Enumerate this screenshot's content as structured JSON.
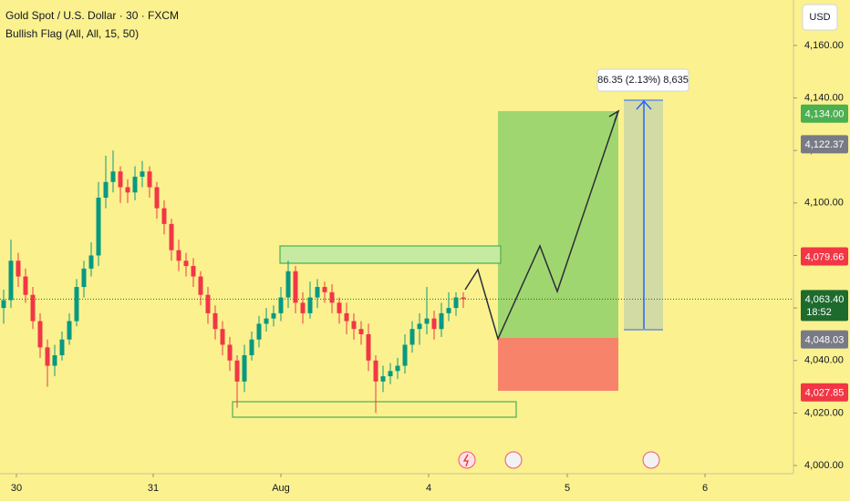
{
  "chart_data": {
    "type": "candlestick",
    "title": "Gold Spot / U.S. Dollar · 30 · FXCM",
    "subtitle": "Bullish Flag (All, All, 15, 50)",
    "currency": "USD",
    "measure_label": "86.35 (2.13%) 8,635",
    "up_color": "#089981",
    "down_color": "#f23645",
    "open": [
      4060,
      4063,
      4078,
      4072,
      4065,
      4055,
      4045,
      4038,
      4042,
      4048,
      4055,
      4068,
      4075,
      4080,
      4102,
      4108,
      4112,
      4106,
      4104,
      4110,
      4112,
      4106,
      4098,
      4092,
      4082,
      4078,
      4076,
      4072,
      4065,
      4058,
      4052,
      4046,
      4040,
      4032,
      4042,
      4048,
      4054,
      4056,
      4058,
      4064,
      4074,
      4062,
      4058,
      4064,
      4068,
      4066,
      4062,
      4058,
      4055,
      4052,
      4050,
      4040,
      4032,
      4034,
      4036,
      4038,
      4046,
      4052,
      4054,
      4056,
      4052,
      4058,
      4060,
      4064
    ],
    "high": [
      4067,
      4086,
      4081,
      4075,
      4068,
      4058,
      4048,
      4046,
      4051,
      4058,
      4071,
      4078,
      4085,
      4108,
      4118,
      4120,
      4114,
      4109,
      4114,
      4116,
      4114,
      4108,
      4101,
      4094,
      4086,
      4081,
      4079,
      4074,
      4068,
      4061,
      4055,
      4049,
      4042,
      4046,
      4051,
      4057,
      4060,
      4061,
      4068,
      4078,
      4076,
      4066,
      4070,
      4071,
      4070,
      4069,
      4064,
      4062,
      4058,
      4055,
      4054,
      4042,
      4038,
      4039,
      4041,
      4050,
      4055,
      4058,
      4068,
      4059,
      4062,
      4066,
      4066,
      4066
    ],
    "low": [
      4054,
      4060,
      4068,
      4062,
      4052,
      4041,
      4030,
      4034,
      4040,
      4046,
      4053,
      4064,
      4072,
      4076,
      4098,
      4104,
      4100,
      4100,
      4101,
      4106,
      4102,
      4094,
      4088,
      4078,
      4074,
      4072,
      4068,
      4061,
      4054,
      4048,
      4042,
      4036,
      4022,
      4028,
      4040,
      4045,
      4051,
      4053,
      4055,
      4060,
      4058,
      4054,
      4056,
      4060,
      4062,
      4058,
      4054,
      4050,
      4048,
      4046,
      4036,
      4020,
      4028,
      4031,
      4033,
      4035,
      4043,
      4046,
      4050,
      4048,
      4049,
      4055,
      4057,
      4060
    ],
    "close": [
      4063,
      4078,
      4072,
      4065,
      4055,
      4045,
      4038,
      4042,
      4048,
      4055,
      4068,
      4075,
      4080,
      4102,
      4108,
      4112,
      4106,
      4104,
      4110,
      4112,
      4106,
      4098,
      4092,
      4082,
      4078,
      4076,
      4072,
      4065,
      4058,
      4052,
      4046,
      4040,
      4032,
      4042,
      4048,
      4054,
      4056,
      4058,
      4064,
      4074,
      4062,
      4058,
      4064,
      4068,
      4066,
      4062,
      4058,
      4055,
      4052,
      4050,
      4040,
      4032,
      4034,
      4036,
      4038,
      4046,
      4052,
      4054,
      4056,
      4052,
      4058,
      4060,
      4064,
      4063.4
    ],
    "xlim": [
      -0.5,
      108.25
    ],
    "xticks": [
      {
        "value": 1.75,
        "label": "30"
      },
      {
        "value": 20.5,
        "label": "31"
      },
      {
        "value": 38,
        "label": "Aug"
      },
      {
        "value": 58.25,
        "label": "4"
      },
      {
        "value": 77.25,
        "label": "5"
      },
      {
        "value": 96.125,
        "label": "6"
      }
    ],
    "ylim": [
      3996.9,
      4177.3
    ],
    "yticks": [
      {
        "value": 4000,
        "label": "4,000.00"
      },
      {
        "value": 4020,
        "label": "4,020.00"
      },
      {
        "value": 4040,
        "label": "4,040.00"
      },
      {
        "value": 4060,
        "label": "4,060.00"
      },
      {
        "value": 4080,
        "label": "4,080.00"
      },
      {
        "value": 4100,
        "label": "4,100.00"
      },
      {
        "value": 4120,
        "label": "4,120.00"
      },
      {
        "value": 4140,
        "label": "4,140.00"
      },
      {
        "value": 4160,
        "label": "4,160.00"
      }
    ],
    "price_tags": [
      {
        "value": 4134,
        "label": "4,134.00",
        "color": "#4caf50"
      },
      {
        "value": 4122.37,
        "label": "4,122.37",
        "color": "#787b86"
      },
      {
        "value": 4079.66,
        "label": "4,079.66",
        "color": "#f23645"
      },
      {
        "value": 4048.03,
        "label": "4,048.03",
        "color": "#787b86"
      },
      {
        "value": 4027.85,
        "label": "4,027.85",
        "color": "#f23645"
      }
    ],
    "last_price": {
      "value": 4063.4,
      "label": "4,063.40",
      "countdown": "18:52",
      "color": "#1e6b2e"
    }
  }
}
